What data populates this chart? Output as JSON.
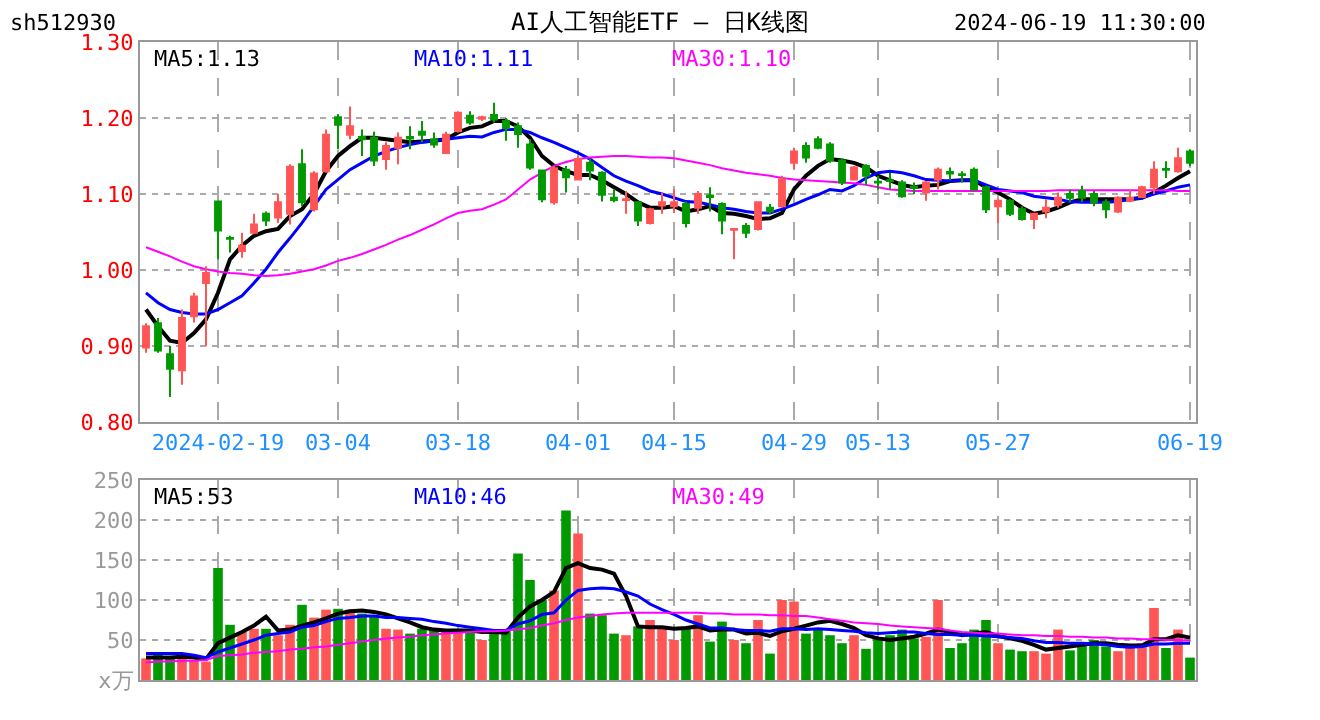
{
  "chart_data": [
    {
      "type": "candlestick",
      "title": "AI人工智能ETF — 日K线图",
      "annotations": [
        "sh512930",
        "2024-06-19 11:30:00"
      ],
      "categories": [
        null,
        null,
        null,
        null,
        null,
        null,
        "2024-02-19",
        null,
        null,
        null,
        null,
        null,
        null,
        null,
        null,
        null,
        "03-04",
        null,
        null,
        null,
        null,
        null,
        null,
        null,
        null,
        null,
        "03-18",
        null,
        null,
        null,
        null,
        null,
        null,
        null,
        null,
        null,
        "04-01",
        null,
        null,
        null,
        null,
        null,
        null,
        null,
        "04-15",
        null,
        null,
        null,
        null,
        null,
        null,
        null,
        null,
        null,
        "04-29",
        null,
        null,
        null,
        null,
        null,
        null,
        "05-13",
        null,
        null,
        null,
        null,
        null,
        null,
        null,
        null,
        null,
        "05-27",
        null,
        null,
        null,
        null,
        null,
        null,
        null,
        null,
        null,
        null,
        null,
        null,
        null,
        null,
        null,
        "06-19"
      ],
      "ohlc": [
        [
          0.898,
          0.93,
          0.891,
          0.926
        ],
        [
          0.93,
          0.937,
          0.891,
          0.894
        ],
        [
          0.889,
          0.9,
          0.833,
          0.87
        ],
        [
          0.868,
          0.948,
          0.849,
          0.937
        ],
        [
          0.939,
          0.97,
          0.931,
          0.965
        ],
        [
          0.983,
          1.005,
          0.9,
          0.996
        ],
        [
          1.09,
          1.091,
          1.014,
          1.052
        ],
        [
          1.042,
          1.045,
          1.023,
          1.041
        ],
        [
          1.025,
          1.049,
          1.016,
          1.032
        ],
        [
          1.049,
          1.074,
          1.047,
          1.06
        ],
        [
          1.074,
          1.077,
          1.058,
          1.065
        ],
        [
          1.069,
          1.1,
          1.062,
          1.089
        ],
        [
          1.074,
          1.139,
          1.06,
          1.136
        ],
        [
          1.139,
          1.159,
          1.084,
          1.089
        ],
        [
          1.08,
          1.13,
          1.077,
          1.127
        ],
        [
          1.13,
          1.185,
          1.128,
          1.178
        ],
        [
          1.201,
          1.205,
          1.159,
          1.191
        ],
        [
          1.178,
          1.215,
          1.172,
          1.189
        ],
        [
          1.175,
          1.185,
          1.15,
          1.172
        ],
        [
          1.174,
          1.182,
          1.137,
          1.144
        ],
        [
          1.146,
          1.168,
          1.132,
          1.163
        ],
        [
          1.161,
          1.181,
          1.139,
          1.174
        ],
        [
          1.175,
          1.189,
          1.159,
          1.173
        ],
        [
          1.182,
          1.196,
          1.168,
          1.178
        ],
        [
          1.172,
          1.181,
          1.161,
          1.165
        ],
        [
          1.154,
          1.182,
          1.153,
          1.178
        ],
        [
          1.183,
          1.209,
          1.181,
          1.207
        ],
        [
          1.203,
          1.209,
          1.191,
          1.194
        ],
        [
          1.199,
          1.203,
          1.196,
          1.201
        ],
        [
          1.204,
          1.22,
          1.194,
          1.198
        ],
        [
          1.196,
          1.2,
          1.17,
          1.187
        ],
        [
          1.189,
          1.194,
          1.161,
          1.179
        ],
        [
          1.165,
          1.172,
          1.132,
          1.135
        ],
        [
          1.131,
          1.132,
          1.089,
          1.093
        ],
        [
          1.089,
          1.137,
          1.086,
          1.134
        ],
        [
          1.132,
          1.137,
          1.102,
          1.122
        ],
        [
          1.119,
          1.15,
          1.118,
          1.146
        ],
        [
          1.141,
          1.146,
          1.118,
          1.131
        ],
        [
          1.128,
          1.13,
          1.09,
          1.099
        ],
        [
          1.095,
          1.106,
          1.089,
          1.092
        ],
        [
          1.092,
          1.104,
          1.074,
          1.093
        ],
        [
          1.089,
          1.09,
          1.058,
          1.065
        ],
        [
          1.062,
          1.082,
          1.06,
          1.08
        ],
        [
          1.085,
          1.102,
          1.074,
          1.089
        ],
        [
          1.084,
          1.106,
          1.075,
          1.089
        ],
        [
          1.087,
          1.09,
          1.056,
          1.062
        ],
        [
          1.082,
          1.104,
          1.074,
          1.1
        ],
        [
          1.098,
          1.109,
          1.077,
          1.096
        ],
        [
          1.087,
          1.089,
          1.047,
          1.065
        ],
        [
          1.053,
          1.055,
          1.014,
          1.054
        ],
        [
          1.058,
          1.062,
          1.042,
          1.049
        ],
        [
          1.054,
          1.09,
          1.052,
          1.089
        ],
        [
          1.082,
          1.087,
          1.074,
          1.077
        ],
        [
          1.084,
          1.124,
          1.082,
          1.119
        ],
        [
          1.141,
          1.161,
          1.132,
          1.156
        ],
        [
          1.163,
          1.168,
          1.141,
          1.148
        ],
        [
          1.172,
          1.176,
          1.159,
          1.161
        ],
        [
          1.165,
          1.168,
          1.141,
          1.144
        ],
        [
          1.144,
          1.147,
          1.112,
          1.115
        ],
        [
          1.119,
          1.137,
          1.118,
          1.135
        ],
        [
          1.137,
          1.139,
          1.112,
          1.124
        ],
        [
          1.116,
          1.124,
          1.106,
          1.115
        ],
        [
          1.118,
          1.128,
          1.106,
          1.117
        ],
        [
          1.115,
          1.118,
          1.095,
          1.097
        ],
        [
          1.11,
          1.115,
          1.1,
          1.108
        ],
        [
          1.102,
          1.117,
          1.091,
          1.115
        ],
        [
          1.119,
          1.135,
          1.106,
          1.132
        ],
        [
          1.129,
          1.135,
          1.118,
          1.127
        ],
        [
          1.126,
          1.13,
          1.115,
          1.125
        ],
        [
          1.132,
          1.135,
          1.104,
          1.106
        ],
        [
          1.109,
          1.111,
          1.075,
          1.08
        ],
        [
          1.084,
          1.093,
          1.062,
          1.091
        ],
        [
          1.091,
          1.093,
          1.071,
          1.074
        ],
        [
          1.08,
          1.084,
          1.065,
          1.067
        ],
        [
          1.067,
          1.075,
          1.054,
          1.074
        ],
        [
          1.077,
          1.093,
          1.068,
          1.082
        ],
        [
          1.086,
          1.102,
          1.082,
          1.095
        ],
        [
          1.1,
          1.106,
          1.089,
          1.095
        ],
        [
          1.104,
          1.111,
          1.089,
          1.095
        ],
        [
          1.1,
          1.104,
          1.084,
          1.089
        ],
        [
          1.089,
          1.093,
          1.068,
          1.08
        ],
        [
          1.077,
          1.097,
          1.075,
          1.095
        ],
        [
          1.091,
          1.106,
          1.089,
          1.095
        ],
        [
          1.096,
          1.111,
          1.095,
          1.109
        ],
        [
          1.109,
          1.143,
          1.1,
          1.132
        ],
        [
          1.133,
          1.143,
          1.121,
          1.132
        ],
        [
          1.13,
          1.161,
          1.128,
          1.147
        ],
        [
          1.156,
          1.159,
          1.137,
          1.141
        ]
      ],
      "colors": [
        "#ff5555",
        "#009900",
        "#009900",
        "#ff5555",
        "#ff5555",
        "#ff5555",
        "#009900",
        "#009900",
        "#ff5555",
        "#ff5555",
        "#009900",
        "#ff5555",
        "#ff5555",
        "#009900",
        "#ff5555",
        "#ff5555",
        "#009900",
        "#ff5555",
        "#009900",
        "#009900",
        "#ff5555",
        "#ff5555",
        "#009900",
        "#009900",
        "#009900",
        "#ff5555",
        "#ff5555",
        "#009900",
        "#ff5555",
        "#009900",
        "#009900",
        "#009900",
        "#009900",
        "#009900",
        "#ff5555",
        "#009900",
        "#ff5555",
        "#009900",
        "#009900",
        "#009900",
        "#ff5555",
        "#009900",
        "#ff5555",
        "#ff5555",
        "#ff5555",
        "#009900",
        "#ff5555",
        "#009900",
        "#009900",
        "#ff5555",
        "#009900",
        "#ff5555",
        "#009900",
        "#ff5555",
        "#ff5555",
        "#009900",
        "#009900",
        "#009900",
        "#009900",
        "#ff5555",
        "#009900",
        "#009900",
        "#009900",
        "#009900",
        "#009900",
        "#ff5555",
        "#ff5555",
        "#009900",
        "#009900",
        "#009900",
        "#009900",
        "#ff5555",
        "#009900",
        "#009900",
        "#ff5555",
        "#ff5555",
        "#ff5555",
        "#009900",
        "#009900",
        "#009900",
        "#009900",
        "#ff5555",
        "#ff5555",
        "#ff5555",
        "#ff5555",
        "#009900",
        "#ff5555",
        "#009900"
      ],
      "series": [
        {
          "name": "MA5:1.13",
          "type": "line",
          "color": "#000000",
          "values": [
            0.948,
            0.926,
            0.907,
            0.904,
            0.917,
            0.935,
            0.97,
            1.014,
            1.032,
            1.045,
            1.051,
            1.054,
            1.071,
            1.08,
            1.1,
            1.13,
            1.15,
            1.163,
            1.174,
            1.174,
            1.172,
            1.17,
            1.168,
            1.169,
            1.17,
            1.172,
            1.181,
            1.187,
            1.189,
            1.196,
            1.196,
            1.189,
            1.174,
            1.15,
            1.137,
            1.13,
            1.125,
            1.125,
            1.118,
            1.109,
            1.1,
            1.089,
            1.082,
            1.082,
            1.084,
            1.077,
            1.08,
            1.084,
            1.075,
            1.074,
            1.071,
            1.067,
            1.068,
            1.075,
            1.106,
            1.124,
            1.137,
            1.146,
            1.144,
            1.141,
            1.135,
            1.124,
            1.118,
            1.112,
            1.109,
            1.111,
            1.112,
            1.117,
            1.118,
            1.118,
            1.109,
            1.102,
            1.093,
            1.082,
            1.074,
            1.077,
            1.082,
            1.089,
            1.093,
            1.093,
            1.093,
            1.093,
            1.093,
            1.095,
            1.102,
            1.111,
            1.121,
            1.13
          ]
        },
        {
          "name": "MA10:1.11",
          "type": "line",
          "color": "#0000ff",
          "values": [
            0.97,
            0.957,
            0.948,
            0.944,
            0.942,
            0.942,
            0.948,
            0.957,
            0.966,
            0.983,
            1.001,
            1.023,
            1.042,
            1.062,
            1.084,
            1.106,
            1.119,
            1.132,
            1.141,
            1.15,
            1.156,
            1.161,
            1.165,
            1.168,
            1.17,
            1.172,
            1.174,
            1.176,
            1.175,
            1.181,
            1.185,
            1.185,
            1.181,
            1.174,
            1.168,
            1.161,
            1.154,
            1.146,
            1.135,
            1.124,
            1.117,
            1.111,
            1.104,
            1.1,
            1.095,
            1.09,
            1.089,
            1.086,
            1.082,
            1.08,
            1.077,
            1.075,
            1.075,
            1.08,
            1.086,
            1.093,
            1.099,
            1.106,
            1.104,
            1.111,
            1.121,
            1.128,
            1.13,
            1.128,
            1.124,
            1.119,
            1.118,
            1.117,
            1.118,
            1.118,
            1.112,
            1.106,
            1.104,
            1.102,
            1.097,
            1.095,
            1.093,
            1.09,
            1.089,
            1.089,
            1.089,
            1.09,
            1.093,
            1.095,
            1.1,
            1.104,
            1.109,
            1.112
          ]
        },
        {
          "name": "MA30:1.10",
          "type": "line",
          "color": "#ff00ff",
          "values": [
            1.03,
            1.024,
            1.018,
            1.011,
            1.005,
            1.001,
            0.998,
            0.996,
            0.995,
            0.993,
            0.992,
            0.993,
            0.995,
            0.998,
            1.001,
            1.006,
            1.012,
            1.016,
            1.021,
            1.027,
            1.033,
            1.04,
            1.046,
            1.053,
            1.06,
            1.068,
            1.075,
            1.078,
            1.08,
            1.086,
            1.093,
            1.106,
            1.119,
            1.128,
            1.137,
            1.142,
            1.146,
            1.148,
            1.149,
            1.15,
            1.15,
            1.149,
            1.148,
            1.148,
            1.147,
            1.144,
            1.141,
            1.138,
            1.134,
            1.131,
            1.128,
            1.126,
            1.124,
            1.121,
            1.119,
            1.118,
            1.117,
            1.116,
            1.115,
            1.114,
            1.112,
            1.109,
            1.106,
            1.105,
            1.104,
            1.104,
            1.104,
            1.104,
            1.104,
            1.104,
            1.104,
            1.104,
            1.104,
            1.104,
            1.104,
            1.104,
            1.105,
            1.105,
            1.105,
            1.105,
            1.105,
            1.105,
            1.105,
            1.105,
            1.105,
            1.105,
            1.104,
            1.104
          ]
        }
      ],
      "ylim": [
        0.8,
        1.3
      ],
      "yticks": [
        {
          "value": 0.8,
          "label": "0.80"
        },
        {
          "value": 0.9,
          "label": "0.90"
        },
        {
          "value": 1.0,
          "label": "1.00"
        },
        {
          "value": 1.1,
          "label": "1.10"
        },
        {
          "value": 1.2,
          "label": "1.20"
        },
        {
          "value": 1.3,
          "label": "1.30"
        }
      ],
      "grid": true
    },
    {
      "type": "bar",
      "categories": [
        null,
        null,
        null,
        null,
        null,
        null,
        null,
        null,
        null,
        null,
        null,
        null,
        null,
        null,
        null,
        null,
        null,
        null,
        null,
        null,
        null,
        null,
        null,
        null,
        null,
        null,
        null,
        null,
        null,
        null,
        null,
        null,
        null,
        null,
        null,
        null,
        null,
        null,
        null,
        null,
        null,
        null,
        null,
        null,
        null,
        null,
        null,
        null,
        null,
        null,
        null,
        null,
        null,
        null,
        null,
        null,
        null,
        null,
        null,
        null,
        null,
        null,
        null,
        null,
        null,
        null,
        null,
        null,
        null,
        null,
        null,
        null,
        null,
        null,
        null,
        null,
        null,
        null,
        null,
        null,
        null,
        null,
        null,
        null,
        null,
        null,
        null,
        null
      ],
      "series": [
        {
          "type": "bar",
          "values": [
            27,
            32,
            29,
            33,
            25,
            23,
            140,
            69,
            60,
            64,
            64,
            56,
            69,
            94,
            78,
            88,
            89,
            88,
            83,
            79,
            64,
            63,
            58,
            64,
            64,
            61,
            64,
            61,
            50,
            61,
            61,
            158,
            125,
            100,
            112,
            212,
            183,
            83,
            81,
            58,
            56,
            67,
            75,
            67,
            50,
            64,
            81,
            48,
            73,
            50,
            46,
            75,
            33,
            100,
            98,
            58,
            64,
            56,
            46,
            56,
            39,
            53,
            56,
            63,
            52,
            54,
            100,
            40,
            46,
            63,
            75,
            46,
            38,
            36,
            36,
            33,
            63,
            37,
            46,
            50,
            42,
            36,
            42,
            46,
            90,
            40,
            63,
            28
          ],
          "colors": [
            "#ff5555",
            "#009900",
            "#009900",
            "#ff5555",
            "#ff5555",
            "#ff5555",
            "#009900",
            "#009900",
            "#ff5555",
            "#ff5555",
            "#009900",
            "#ff5555",
            "#ff5555",
            "#009900",
            "#ff5555",
            "#ff5555",
            "#009900",
            "#ff5555",
            "#009900",
            "#009900",
            "#ff5555",
            "#ff5555",
            "#009900",
            "#009900",
            "#009900",
            "#ff5555",
            "#ff5555",
            "#009900",
            "#ff5555",
            "#009900",
            "#009900",
            "#009900",
            "#009900",
            "#009900",
            "#ff5555",
            "#009900",
            "#ff5555",
            "#009900",
            "#009900",
            "#009900",
            "#ff5555",
            "#009900",
            "#ff5555",
            "#ff5555",
            "#ff5555",
            "#009900",
            "#ff5555",
            "#009900",
            "#009900",
            "#ff5555",
            "#009900",
            "#ff5555",
            "#009900",
            "#ff5555",
            "#ff5555",
            "#009900",
            "#009900",
            "#009900",
            "#009900",
            "#ff5555",
            "#009900",
            "#009900",
            "#009900",
            "#009900",
            "#009900",
            "#ff5555",
            "#ff5555",
            "#009900",
            "#009900",
            "#009900",
            "#009900",
            "#ff5555",
            "#009900",
            "#009900",
            "#ff5555",
            "#ff5555",
            "#ff5555",
            "#009900",
            "#009900",
            "#009900",
            "#009900",
            "#ff5555",
            "#ff5555",
            "#ff5555",
            "#ff5555",
            "#009900",
            "#ff5555",
            "#009900"
          ]
        },
        {
          "name": "MA5:53",
          "type": "line",
          "color": "#000000",
          "values": [
            28,
            28,
            28,
            29,
            28,
            26,
            46,
            53,
            60,
            68,
            79,
            62,
            63,
            68,
            72,
            77,
            83,
            86,
            87,
            85,
            82,
            77,
            72,
            66,
            63,
            62,
            62,
            62,
            60,
            60,
            59,
            78,
            92,
            100,
            110,
            140,
            146,
            140,
            138,
            133,
            105,
            67,
            66,
            66,
            64,
            65,
            67,
            62,
            63,
            63,
            58,
            59,
            55,
            61,
            64,
            68,
            72,
            74,
            70,
            65,
            56,
            52,
            50,
            52,
            54,
            58,
            63,
            60,
            56,
            58,
            60,
            55,
            52,
            49,
            44,
            38,
            40,
            42,
            44,
            46,
            46,
            44,
            43,
            43,
            51,
            51,
            56,
            53
          ]
        },
        {
          "name": "MA10:46",
          "type": "line",
          "color": "#0000ff",
          "values": [
            33,
            33,
            33,
            33,
            31,
            28,
            35,
            40,
            45,
            50,
            56,
            58,
            60,
            66,
            68,
            73,
            77,
            78,
            80,
            80,
            78,
            78,
            77,
            76,
            73,
            71,
            68,
            66,
            64,
            62,
            62,
            70,
            74,
            82,
            84,
            100,
            112,
            114,
            115,
            114,
            110,
            105,
            95,
            88,
            82,
            75,
            70,
            65,
            65,
            63,
            62,
            62,
            61,
            64,
            64,
            63,
            64,
            63,
            62,
            61,
            59,
            58,
            59,
            60,
            60,
            58,
            57,
            57,
            56,
            56,
            55,
            54,
            53,
            52,
            49,
            47,
            47,
            46,
            46,
            45,
            44,
            42,
            41,
            42,
            45,
            45,
            46,
            46
          ]
        },
        {
          "name": "MA30:49",
          "type": "line",
          "color": "#ff00ff",
          "values": [
            22,
            23,
            23,
            24,
            24,
            25,
            30,
            31,
            32,
            34,
            35,
            36,
            38,
            39,
            41,
            42,
            44,
            46,
            48,
            50,
            52,
            53,
            54,
            56,
            57,
            58,
            59,
            60,
            61,
            61,
            62,
            63,
            65,
            68,
            71,
            75,
            78,
            80,
            82,
            83,
            84,
            84,
            84,
            84,
            84,
            84,
            84,
            83,
            83,
            82,
            82,
            82,
            81,
            81,
            80,
            80,
            78,
            76,
            74,
            72,
            71,
            70,
            68,
            67,
            66,
            65,
            64,
            62,
            60,
            59,
            58,
            58,
            57,
            56,
            56,
            55,
            55,
            54,
            54,
            53,
            53,
            52,
            52,
            51,
            51,
            50,
            50,
            49
          ]
        }
      ],
      "ylim": [
        0,
        250
      ],
      "yticks": [
        {
          "value": 0,
          "label": "x万"
        },
        50,
        100,
        150,
        200,
        250
      ],
      "grid": true,
      "tick_labels": "y"
    }
  ]
}
